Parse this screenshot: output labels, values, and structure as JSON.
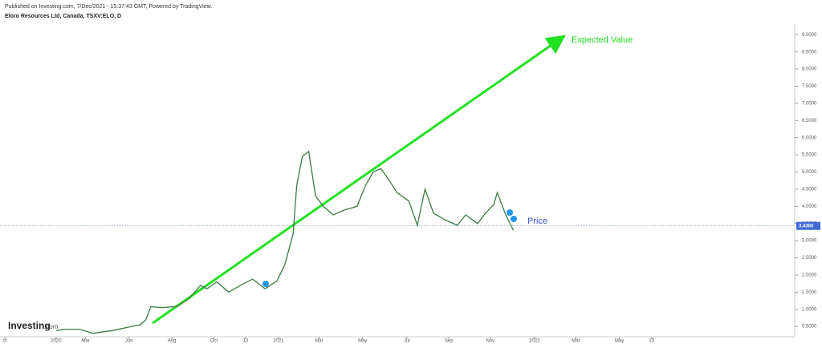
{
  "chart_data": {
    "type": "line",
    "published": "Published on Investing.com, 7/Dec/2021 - 15:37:43 GMT, Powered by TradingView.",
    "title": "Eloro Resources Ltd, Canada, TSXV:ELO, D",
    "brand": "Investing",
    "brand_suffix": ".com",
    "annotations": [
      "Expected Value",
      "Price"
    ],
    "x": [
      49,
      61,
      83,
      101,
      129,
      152,
      169,
      177,
      184,
      198,
      221,
      238,
      255,
      264,
      278,
      295,
      312,
      329,
      347,
      364,
      375,
      387,
      392,
      400,
      409,
      419,
      430,
      444,
      461,
      478,
      490,
      501,
      512,
      524,
      535,
      552,
      564,
      575,
      587,
      604,
      621,
      633,
      650,
      661,
      673,
      678,
      690,
      701
    ],
    "values": [
      0.38,
      0.42,
      0.42,
      0.3,
      0.38,
      0.48,
      0.55,
      0.7,
      1.08,
      1.05,
      1.08,
      1.3,
      1.7,
      1.6,
      1.8,
      1.5,
      1.7,
      1.88,
      1.6,
      1.83,
      2.3,
      3.2,
      4.6,
      5.45,
      5.6,
      4.3,
      4.0,
      3.75,
      3.9,
      4.0,
      4.6,
      5.0,
      5.1,
      4.75,
      4.4,
      4.15,
      3.45,
      4.5,
      3.8,
      3.6,
      3.45,
      3.75,
      3.5,
      3.8,
      4.05,
      4.4,
      3.75,
      3.3
    ],
    "color": "#3d7a45",
    "last_price": {
      "value": 3.43,
      "label": "3.4300"
    },
    "xlim": [
      -31,
      1102
    ],
    "xticks": [
      {
        "value": -24,
        "label": "ct"
      },
      {
        "value": 49,
        "label": "2020"
      },
      {
        "value": 91,
        "label": "Mar"
      },
      {
        "value": 153,
        "label": "Jun"
      },
      {
        "value": 214,
        "label": "Aug"
      },
      {
        "value": 274,
        "label": "Oct"
      },
      {
        "value": 319,
        "label": "13"
      },
      {
        "value": 366,
        "label": "2021"
      },
      {
        "value": 424,
        "label": "Mar"
      },
      {
        "value": 486,
        "label": "May"
      },
      {
        "value": 549,
        "label": "Jul"
      },
      {
        "value": 609,
        "label": "Sep"
      },
      {
        "value": 668,
        "label": "Nov"
      },
      {
        "value": 731,
        "label": "2022"
      },
      {
        "value": 790,
        "label": "Mar"
      },
      {
        "value": 852,
        "label": "May"
      },
      {
        "value": 898,
        "label": "13"
      }
    ],
    "ylim": [
      0.2,
      9.31
    ],
    "yticks": [
      {
        "value": 0.5,
        "label": "0.5000"
      },
      {
        "value": 1.0,
        "label": "1.0000"
      },
      {
        "value": 1.5,
        "label": "1.5000"
      },
      {
        "value": 2.0,
        "label": "2.0000"
      },
      {
        "value": 2.5,
        "label": "2.5000"
      },
      {
        "value": 3.0,
        "label": "3.0000"
      },
      {
        "value": 3.5,
        "label": "3.5000"
      },
      {
        "value": 4.0,
        "label": "4.0000"
      },
      {
        "value": 4.5,
        "label": "4.5000"
      },
      {
        "value": 5.0,
        "label": "5.0000"
      },
      {
        "value": 5.5,
        "label": "5.5000"
      },
      {
        "value": 6.0,
        "label": "6.0000"
      },
      {
        "value": 6.5,
        "label": "6.5000"
      },
      {
        "value": 7.0,
        "label": "7.0000"
      },
      {
        "value": 7.5,
        "label": "7.5000"
      },
      {
        "value": 8.0,
        "label": "8.0000"
      },
      {
        "value": 8.5,
        "label": "8.5000"
      },
      {
        "value": 9.0,
        "label": "9.0000"
      }
    ]
  }
}
